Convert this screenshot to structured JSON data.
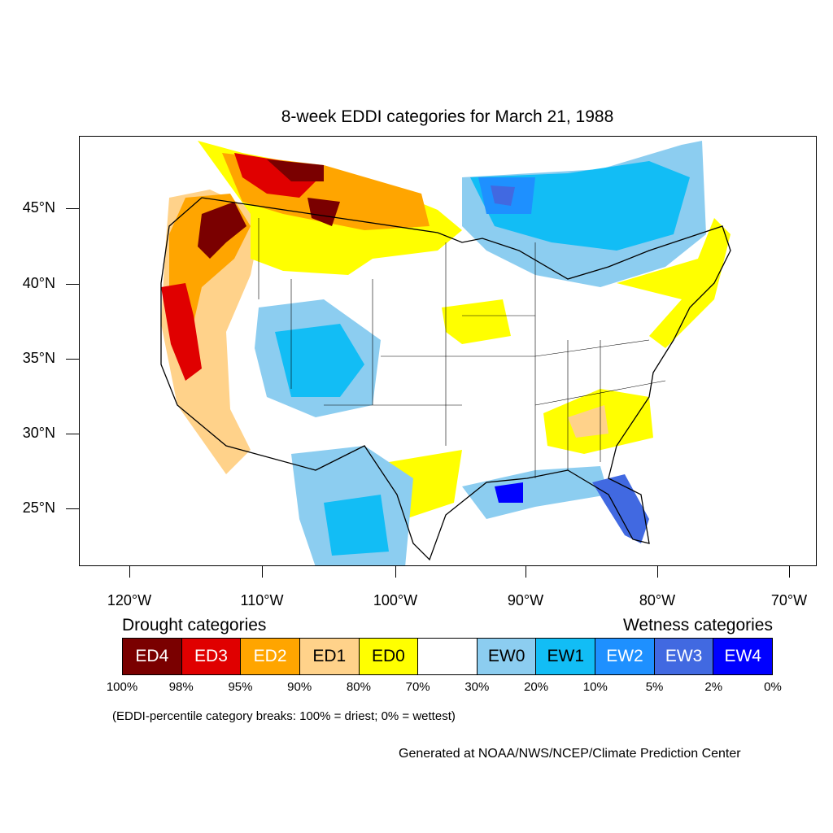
{
  "title": "8-week EDDI categories for March 21, 1988",
  "axes": {
    "y_labels": [
      "45°N",
      "40°N",
      "35°N",
      "30°N",
      "25°N"
    ],
    "x_labels": [
      "120°W",
      "110°W",
      "100°W",
      "90°W",
      "80°W",
      "70°W"
    ]
  },
  "colors": {
    "ED4": "#7a0000",
    "ED3": "#e00000",
    "ED2": "#ffa500",
    "ED1": "#ffd28a",
    "ED0": "#ffff00",
    "neutral": "#ffffff",
    "EW0": "#8ccdf0",
    "EW1": "#12bdf5",
    "EW2": "#1e90ff",
    "EW3": "#4169e1",
    "EW4": "#0000ff"
  },
  "legend": {
    "drought_heading": "Drought categories",
    "wetness_heading": "Wetness categories",
    "categories": [
      {
        "label": "ED4",
        "color": "#7a0000",
        "text_color": "#ffffff"
      },
      {
        "label": "ED3",
        "color": "#e00000",
        "text_color": "#ffffff"
      },
      {
        "label": "ED2",
        "color": "#ffa500",
        "text_color": "#ffffff"
      },
      {
        "label": "ED1",
        "color": "#ffd28a",
        "text_color": "#000000"
      },
      {
        "label": "ED0",
        "color": "#ffff00",
        "text_color": "#000000"
      },
      {
        "label": "",
        "color": "#ffffff",
        "text_color": "#000000"
      },
      {
        "label": "EW0",
        "color": "#8ccdf0",
        "text_color": "#000000"
      },
      {
        "label": "EW1",
        "color": "#12bdf5",
        "text_color": "#000000"
      },
      {
        "label": "EW2",
        "color": "#1e90ff",
        "text_color": "#ffffff"
      },
      {
        "label": "EW3",
        "color": "#4169e1",
        "text_color": "#ffffff"
      },
      {
        "label": "EW4",
        "color": "#0000ff",
        "text_color": "#ffffff"
      }
    ],
    "breaks": [
      "100%",
      "98%",
      "95%",
      "90%",
      "80%",
      "70%",
      "30%",
      "20%",
      "10%",
      "5%",
      "2%",
      "0%"
    ]
  },
  "note": "(EDDI-percentile category breaks: 100% = driest; 0% = wettest)",
  "credit": "Generated at NOAA/NWS/NCEP/Climate Prediction Center"
}
